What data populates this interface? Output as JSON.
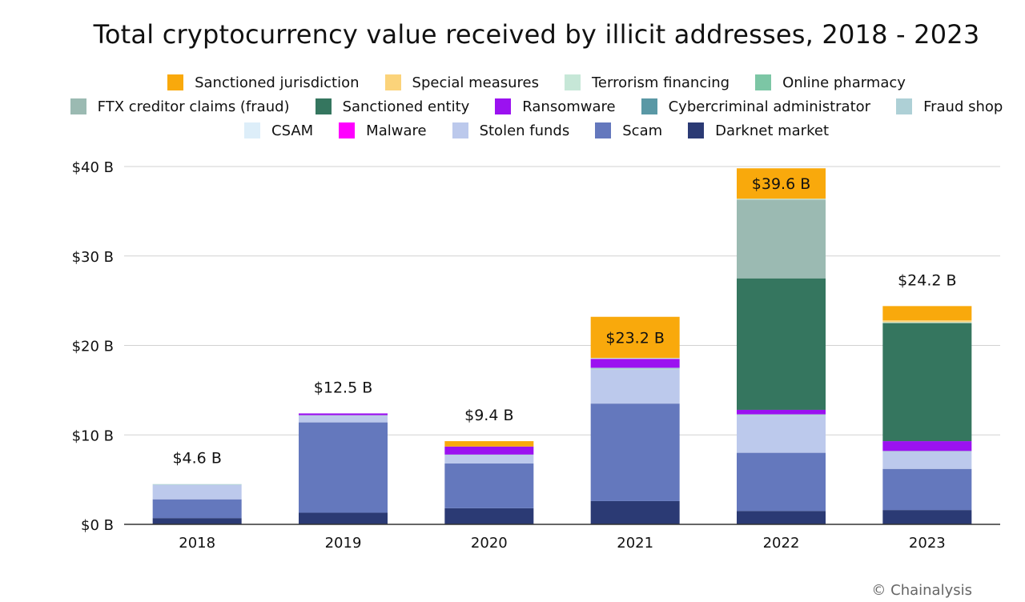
{
  "credit": "© Chainalysis",
  "chart_data": {
    "type": "bar",
    "stacked": true,
    "title": "Total cryptocurrency value received by illicit addresses, 2018 - 2023",
    "xlabel": "",
    "ylabel": "",
    "ylim": [
      0,
      40
    ],
    "yticks": [
      {
        "value": 0,
        "label": "$0 B"
      },
      {
        "value": 10,
        "label": "$10 B"
      },
      {
        "value": 20,
        "label": "$20 B"
      },
      {
        "value": 30,
        "label": "$30 B"
      },
      {
        "value": 40,
        "label": "$40 B"
      }
    ],
    "grid": true,
    "legend_position": "top",
    "categories": [
      "2018",
      "2019",
      "2020",
      "2021",
      "2022",
      "2023"
    ],
    "totals": [
      {
        "label": "$4.6 B",
        "value": 4.6
      },
      {
        "label": "$12.5 B",
        "value": 12.5
      },
      {
        "label": "$9.4 B",
        "value": 9.4
      },
      {
        "label": "$23.2 B",
        "value": 23.2
      },
      {
        "label": "$39.6 B",
        "value": 39.6
      },
      {
        "label": "$24.2 B",
        "value": 24.2
      }
    ],
    "legend_rows": [
      [
        "Sanctioned jurisdiction",
        "Special measures",
        "Terrorism financing",
        "Online pharmacy"
      ],
      [
        "FTX creditor claims (fraud)",
        "Sanctioned entity",
        "Ransomware",
        "Cybercriminal administrator",
        "Fraud shop"
      ],
      [
        "CSAM",
        "Malware",
        "Stolen funds",
        "Scam",
        "Darknet market"
      ]
    ],
    "series": [
      {
        "name": "Darknet market",
        "color": "#2b3a74",
        "values": [
          0.7,
          1.3,
          1.8,
          2.6,
          1.5,
          1.6
        ]
      },
      {
        "name": "Scam",
        "color": "#6478bd",
        "values": [
          2.1,
          10.1,
          5.0,
          10.9,
          6.5,
          4.6
        ]
      },
      {
        "name": "Stolen funds",
        "color": "#bcc9ec",
        "values": [
          1.6,
          0.7,
          0.9,
          3.8,
          4.1,
          1.9
        ]
      },
      {
        "name": "Malware",
        "color": "#ff00ff",
        "values": [
          0.0,
          0.0,
          0.0,
          0.0,
          0.0,
          0.0
        ]
      },
      {
        "name": "CSAM",
        "color": "#ddeef9",
        "values": [
          0.0,
          0.0,
          0.0,
          0.0,
          0.0,
          0.0
        ]
      },
      {
        "name": "Fraud shop",
        "color": "#aed0d6",
        "values": [
          0.1,
          0.1,
          0.1,
          0.2,
          0.2,
          0.1
        ]
      },
      {
        "name": "Cybercriminal administrator",
        "color": "#5a98a5",
        "values": [
          0.0,
          0.0,
          0.0,
          0.0,
          0.0,
          0.0
        ]
      },
      {
        "name": "Ransomware",
        "color": "#9b12f0",
        "values": [
          0.0,
          0.2,
          0.9,
          1.0,
          0.5,
          1.1
        ]
      },
      {
        "name": "Sanctioned entity",
        "color": "#35765f",
        "values": [
          0.0,
          0.0,
          0.0,
          0.0,
          14.7,
          13.2
        ]
      },
      {
        "name": "FTX creditor claims (fraud)",
        "color": "#9bbab2",
        "values": [
          0.0,
          0.0,
          0.0,
          0.0,
          8.8,
          0.0
        ]
      },
      {
        "name": "Online pharmacy",
        "color": "#7cc6a5",
        "values": [
          0.0,
          0.0,
          0.0,
          0.0,
          0.0,
          0.0
        ]
      },
      {
        "name": "Terrorism financing",
        "color": "#c6e7d7",
        "values": [
          0.0,
          0.0,
          0.0,
          0.1,
          0.1,
          0.1
        ]
      },
      {
        "name": "Special measures",
        "color": "#fbd37a",
        "values": [
          0.0,
          0.0,
          0.0,
          0.0,
          0.0,
          0.2
        ]
      },
      {
        "name": "Sanctioned jurisdiction",
        "color": "#f9a90c",
        "values": [
          0.0,
          0.0,
          0.6,
          4.6,
          3.4,
          1.6
        ]
      }
    ]
  }
}
